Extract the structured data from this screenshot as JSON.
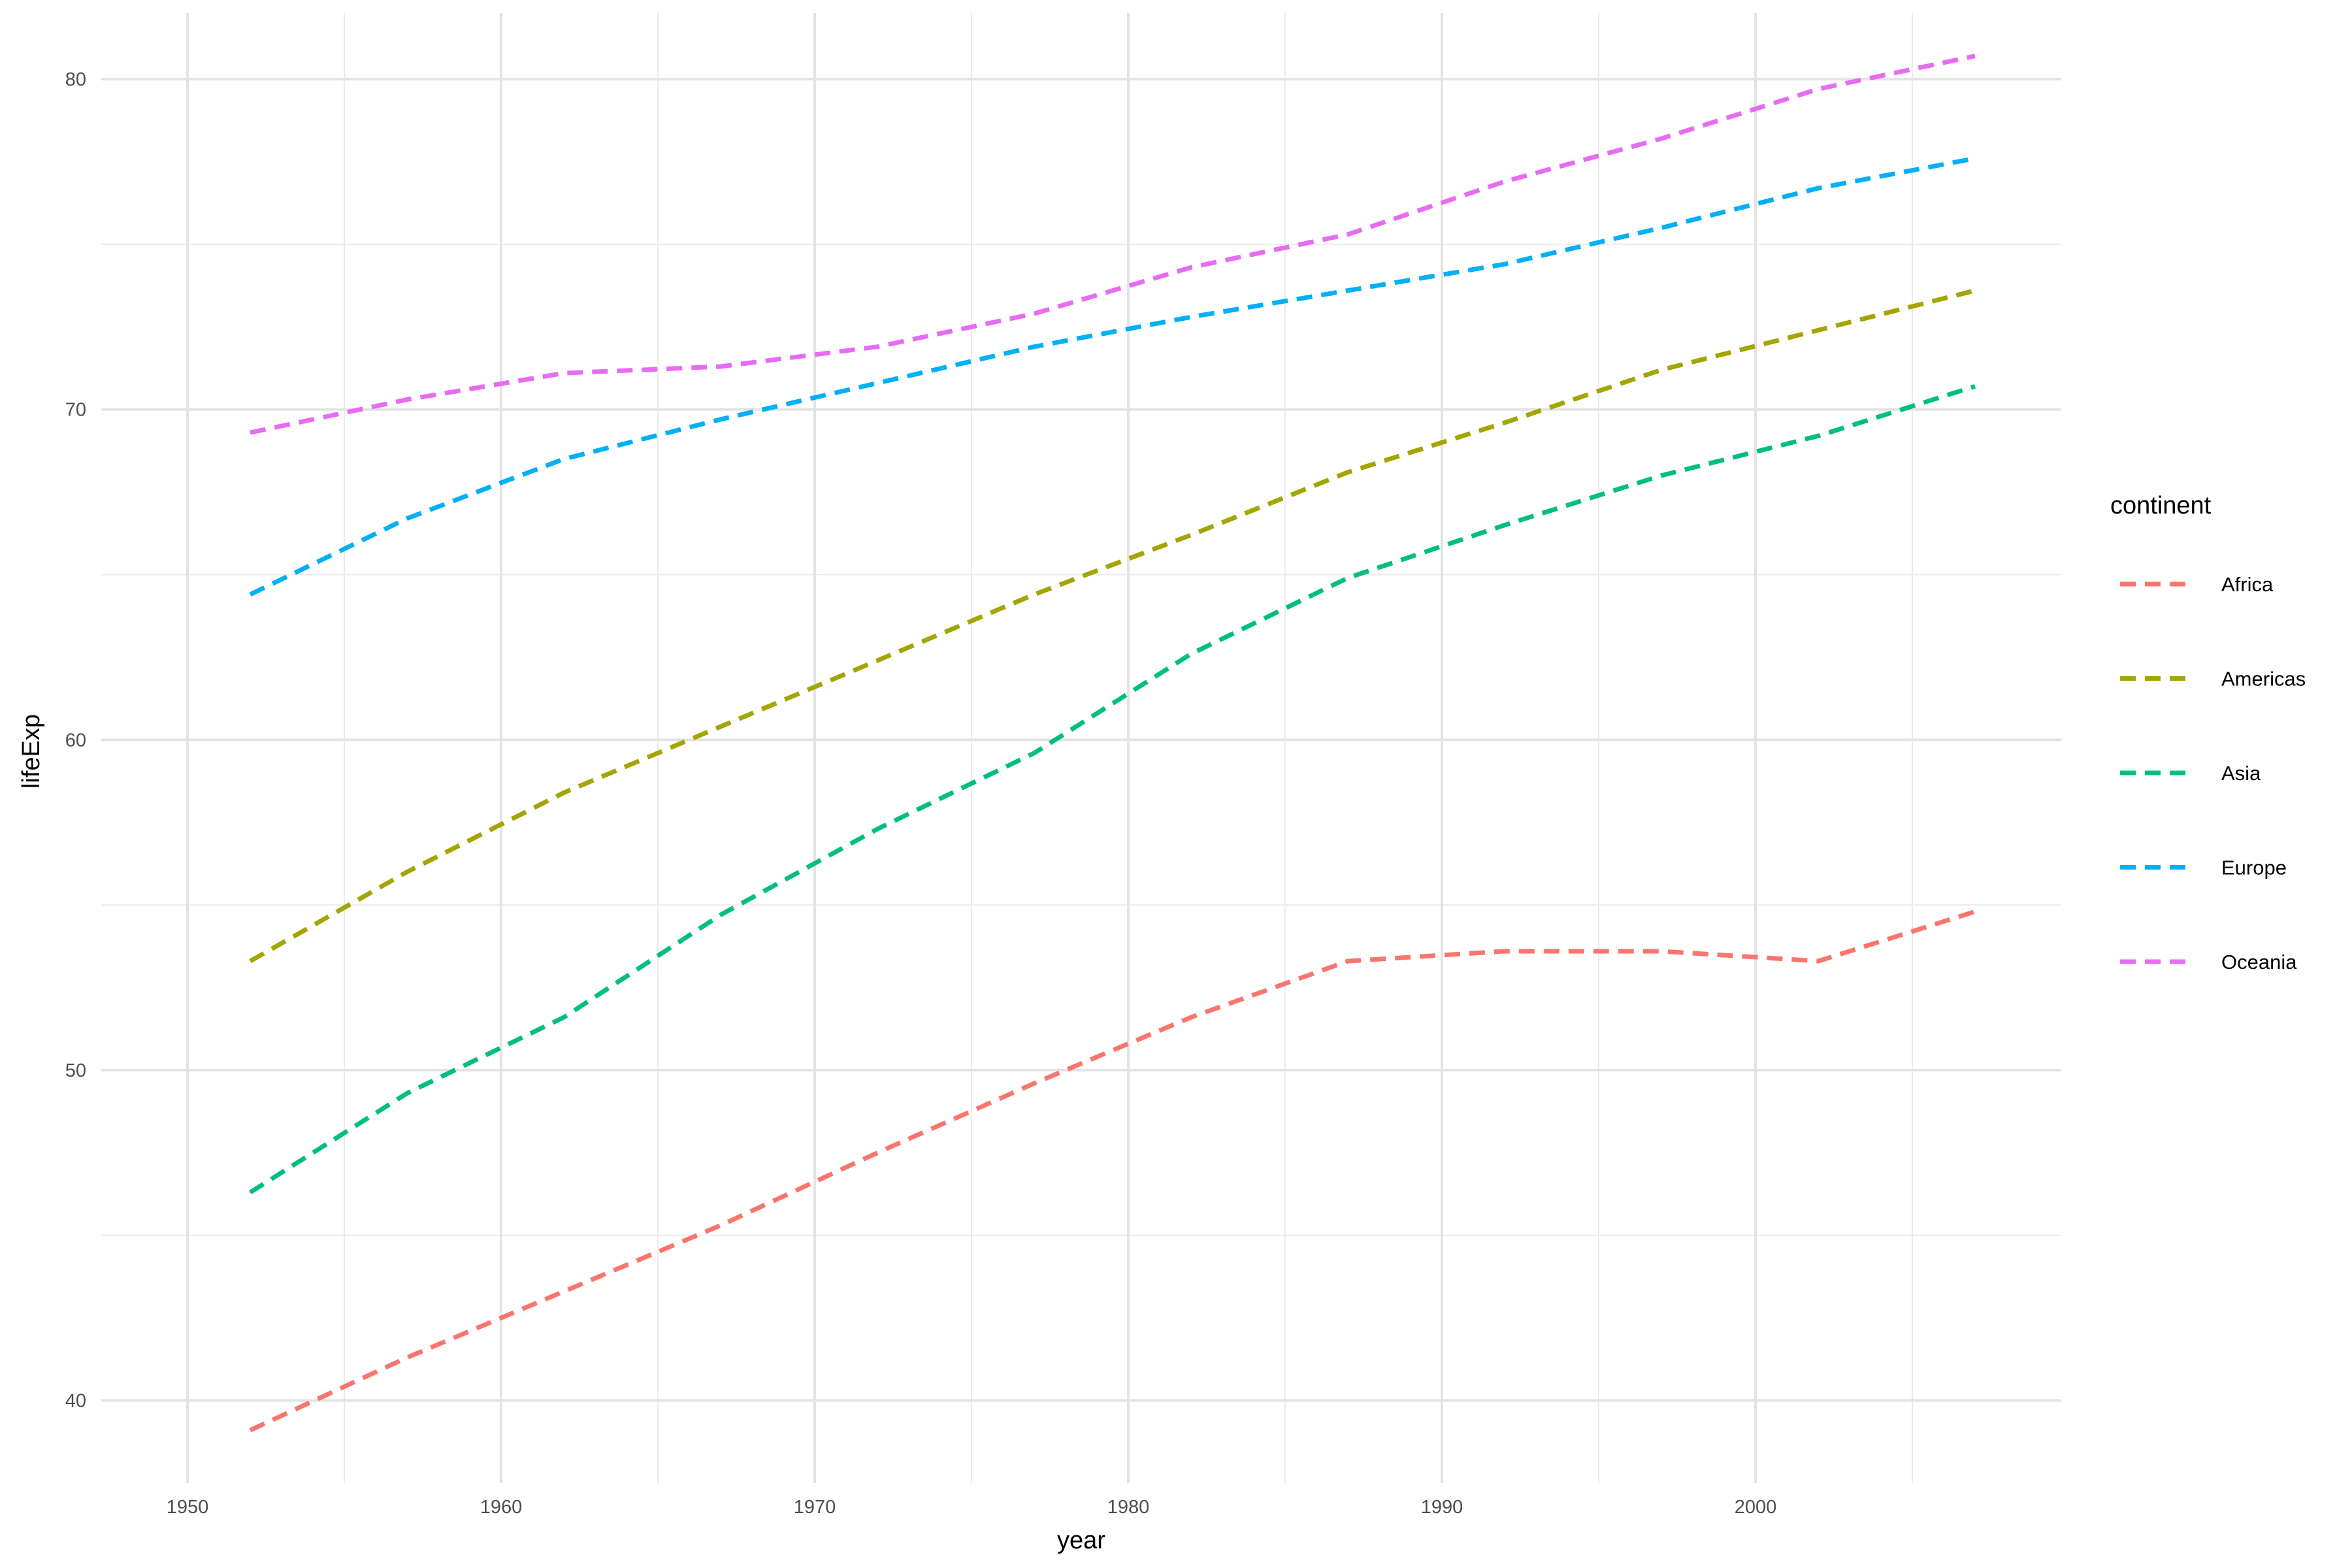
{
  "chart_data": {
    "type": "line",
    "xlabel": "year",
    "ylabel": "lifeExp",
    "xlim": [
      1947.25,
      2009.75
    ],
    "ylim": [
      37.5,
      82.0
    ],
    "x_ticks": [
      1950,
      1960,
      1970,
      1980,
      1990,
      2000
    ],
    "x_minor_ticks": [
      1955,
      1965,
      1975,
      1985,
      1995,
      2005
    ],
    "y_ticks": [
      40,
      50,
      60,
      70,
      80
    ],
    "y_minor_ticks": [
      45,
      55,
      65,
      75
    ],
    "x_tick_labels": [
      "1950",
      "1960",
      "1970",
      "1980",
      "1990",
      "2000"
    ],
    "y_tick_labels": [
      "40",
      "50",
      "60",
      "70",
      "80"
    ],
    "grid": true,
    "line_style": "dashed",
    "legend_title": "continent",
    "legend_position": "right",
    "x": [
      1952,
      1957,
      1962,
      1967,
      1972,
      1977,
      1982,
      1987,
      1992,
      1997,
      2002,
      2007
    ],
    "series": [
      {
        "name": "Africa",
        "color": "#F8766D",
        "values": [
          39.1,
          41.3,
          43.3,
          45.3,
          47.5,
          49.6,
          51.6,
          53.3,
          53.6,
          53.6,
          53.3,
          54.8
        ]
      },
      {
        "name": "Americas",
        "color": "#A3A500",
        "values": [
          53.3,
          56.0,
          58.4,
          60.4,
          62.4,
          64.4,
          66.2,
          68.1,
          69.6,
          71.2,
          72.4,
          73.6
        ]
      },
      {
        "name": "Asia",
        "color": "#00BF7D",
        "values": [
          46.3,
          49.3,
          51.6,
          54.7,
          57.3,
          59.6,
          62.6,
          64.9,
          66.5,
          68.0,
          69.2,
          70.7
        ]
      },
      {
        "name": "Europe",
        "color": "#00B0F6",
        "values": [
          64.4,
          66.7,
          68.5,
          69.7,
          70.8,
          71.9,
          72.8,
          73.6,
          74.4,
          75.5,
          76.7,
          77.6
        ]
      },
      {
        "name": "Oceania",
        "color": "#E76BF3",
        "values": [
          69.3,
          70.3,
          71.1,
          71.3,
          71.9,
          72.9,
          74.3,
          75.3,
          76.9,
          78.2,
          79.7,
          80.7
        ]
      }
    ]
  }
}
